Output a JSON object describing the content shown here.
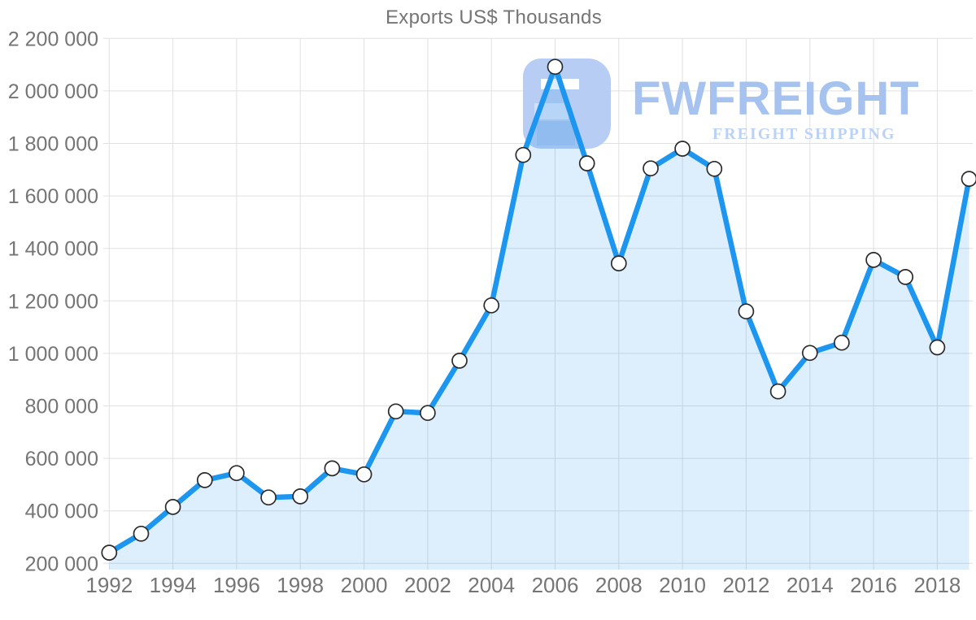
{
  "title": "Exports US$ Thousands",
  "watermark": {
    "brand": "FWFREIGHT",
    "tagline": "FREIGHT SHIPPING"
  },
  "colors": {
    "line": "#1D96F0",
    "area_fill": "#DCEAFB",
    "grid": "#E0E0E0",
    "text": "#757575",
    "marker_fill": "#FFFFFF",
    "marker_stroke": "#2B2B2B",
    "watermark_brand": "#A6C2EE",
    "watermark_tagline": "#BCD2F5",
    "logomark": "#B7CDF3"
  },
  "chart_data": {
    "type": "line",
    "title": "Exports US$ Thousands",
    "xlabel": "",
    "ylabel": "",
    "x": [
      1992,
      1993,
      1994,
      1995,
      1996,
      1997,
      1998,
      1999,
      2000,
      2001,
      2002,
      2003,
      2004,
      2005,
      2006,
      2007,
      2008,
      2009,
      2010,
      2011,
      2012,
      2013,
      2014,
      2015,
      2016,
      2017,
      2018,
      2019
    ],
    "values": [
      241000,
      313000,
      415000,
      517000,
      544000,
      451000,
      455000,
      562000,
      539000,
      779000,
      773000,
      972000,
      1183000,
      1756000,
      2092000,
      1724000,
      1343000,
      1705000,
      1780000,
      1703000,
      1160000,
      855000,
      1002000,
      1041000,
      1356000,
      1291000,
      1023000,
      1665000
    ],
    "series_name": "Exports US$ Thousands",
    "area": true,
    "markers": true,
    "grid": true,
    "legend": false,
    "xlim": [
      1992,
      2019
    ],
    "ylim": [
      200000,
      2200000
    ],
    "y_ticks": [
      200000,
      400000,
      600000,
      800000,
      1000000,
      1200000,
      1400000,
      1600000,
      1800000,
      2000000,
      2200000
    ],
    "y_tick_labels": [
      "200 000",
      "400 000",
      "600 000",
      "800 000",
      "1 000 000",
      "1 200 000",
      "1 400 000",
      "1 600 000",
      "1 800 000",
      "2 000 000",
      "2 200 000"
    ],
    "x_ticks": [
      1992,
      1994,
      1996,
      1998,
      2000,
      2002,
      2004,
      2006,
      2008,
      2010,
      2012,
      2014,
      2016,
      2018
    ],
    "x_tick_labels": [
      "1992",
      "1994",
      "1996",
      "1998",
      "2000",
      "2002",
      "2004",
      "2006",
      "2008",
      "2010",
      "2012",
      "2014",
      "2016",
      "2018"
    ]
  }
}
